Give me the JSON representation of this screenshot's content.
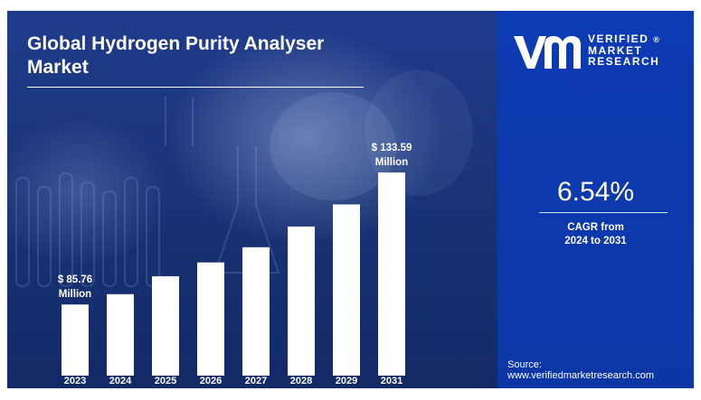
{
  "title_line1": "Global Hydrogen Purity Analyser",
  "title_line2": "Market",
  "brand": {
    "line1": "VERIFIED",
    "line2": "MARKET",
    "line3": "RESEARCH",
    "registered": "®"
  },
  "cagr": {
    "value": "6.54%",
    "label_line1": "CAGR from",
    "label_line2": "2024 to 2031"
  },
  "source": {
    "label": "Source:",
    "url": "www.verifiedmarketresearch.com"
  },
  "colors": {
    "left_bg": "#1a357a",
    "right_bg": "#0d3bb3",
    "bar": "#ffffff",
    "text": "#ffffff"
  },
  "chart_data": {
    "type": "bar",
    "title": "Global Hydrogen Purity Analyser Market",
    "categories": [
      "2023",
      "2024",
      "2025",
      "2026",
      "2027",
      "2028",
      "2029",
      "2031"
    ],
    "values": [
      85.76,
      89.5,
      96,
      101,
      106.5,
      114,
      122,
      133.59
    ],
    "ylim": [
      0,
      140
    ],
    "grid": false,
    "annotations": [
      {
        "category": "2023",
        "line1": "$ 85.76",
        "line2": "Million"
      },
      {
        "category": "2031",
        "line1": "$ 133.59",
        "line2": "Million"
      }
    ]
  }
}
